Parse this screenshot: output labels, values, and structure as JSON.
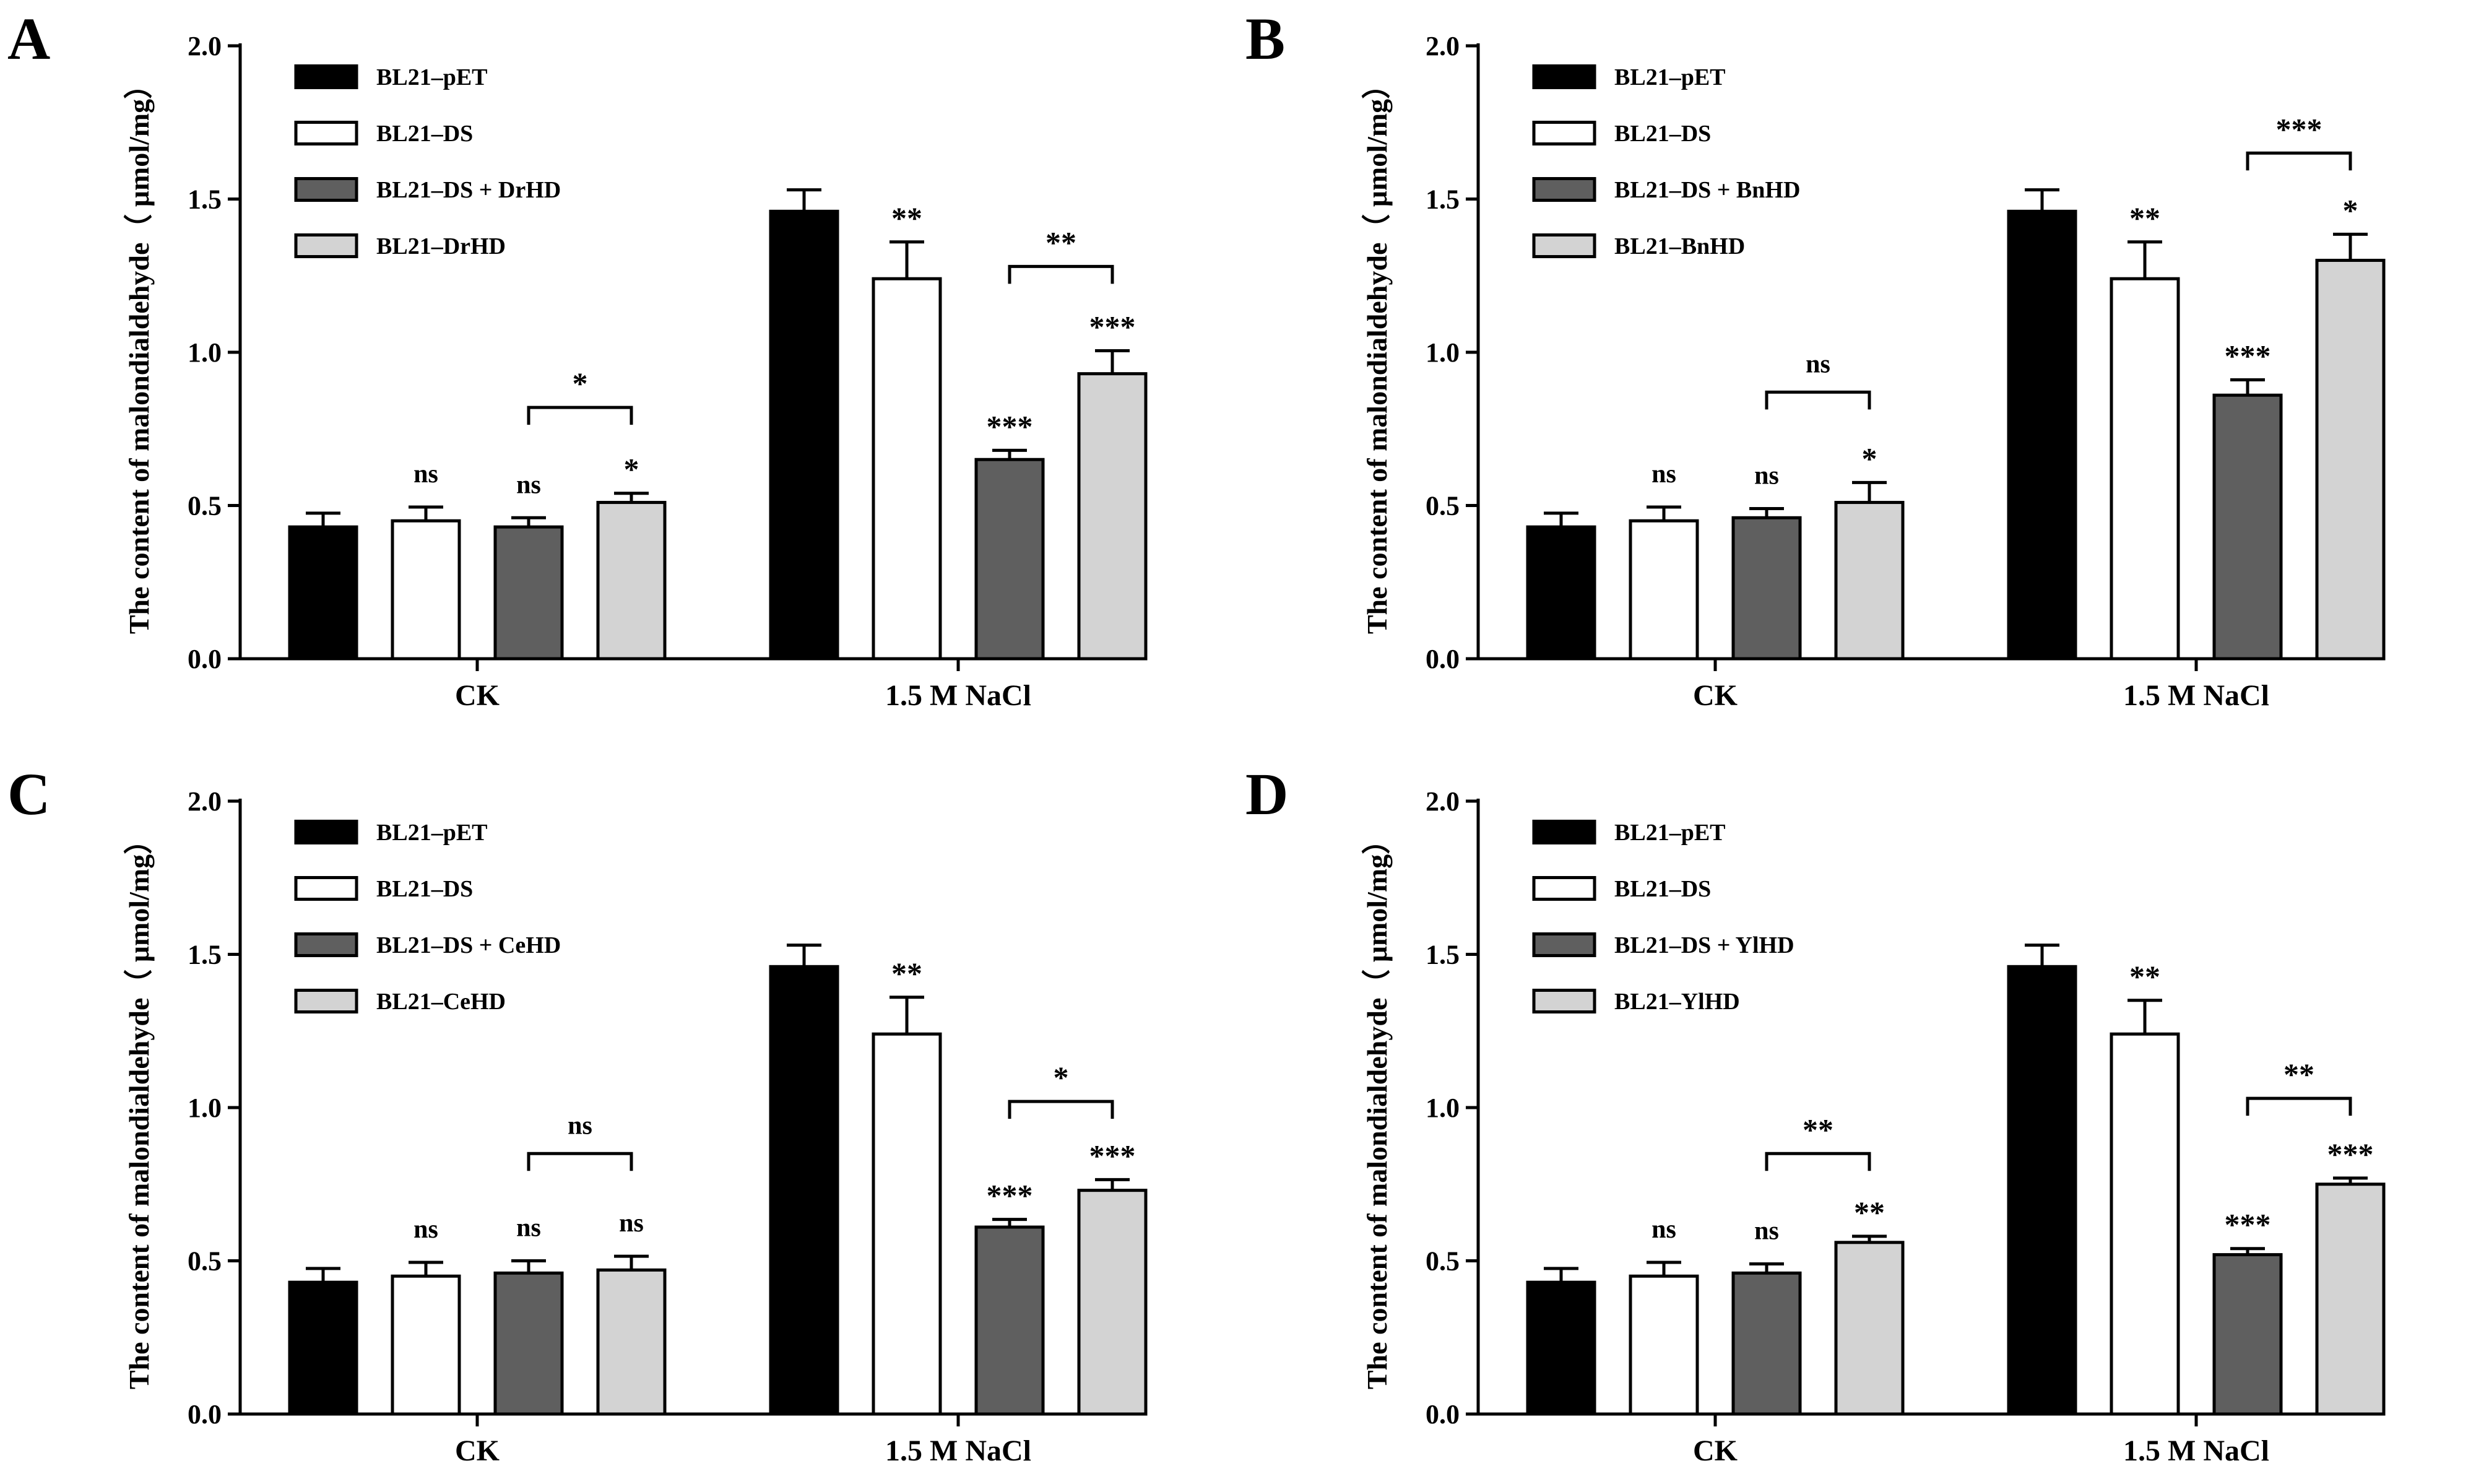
{
  "chart_data": [
    {
      "panel_label": "A",
      "type": "bar",
      "ylabel": "The content of malondialdehyde（ μmol/mg）",
      "ylim": [
        0,
        2.0
      ],
      "yticks": [
        "0.0",
        "0.5",
        "1.0",
        "1.5",
        "2.0"
      ],
      "categories": [
        "CK",
        "1.5 M NaCl"
      ],
      "series": [
        {
          "name": "BL21–pET",
          "color": "#000000",
          "values": [
            0.43,
            1.46
          ],
          "errors": [
            0.045,
            0.07
          ],
          "sig": [
            "",
            ""
          ]
        },
        {
          "name": "BL21–DS",
          "color": "#ffffff",
          "values": [
            0.45,
            1.24
          ],
          "errors": [
            0.045,
            0.12
          ],
          "sig": [
            "ns",
            "**"
          ]
        },
        {
          "name": "BL21–DS + DrHD",
          "color": "#5f5f5f",
          "values": [
            0.43,
            0.65
          ],
          "errors": [
            0.03,
            0.03
          ],
          "sig": [
            "ns",
            "***"
          ]
        },
        {
          "name": "BL21–DrHD",
          "color": "#d3d3d3",
          "values": [
            0.51,
            0.93
          ],
          "errors": [
            0.03,
            0.075
          ],
          "sig": [
            "*",
            "***"
          ]
        }
      ],
      "brackets": [
        {
          "group": 0,
          "from_series": 2,
          "to_series": 3,
          "level": 0.82,
          "label": "*"
        },
        {
          "group": 1,
          "from_series": 2,
          "to_series": 3,
          "level": 1.28,
          "label": "**"
        }
      ]
    },
    {
      "panel_label": "B",
      "type": "bar",
      "ylabel": "The content of malondialdehyde（ μmol/mg）",
      "ylim": [
        0,
        2.0
      ],
      "yticks": [
        "0.0",
        "0.5",
        "1.0",
        "1.5",
        "2.0"
      ],
      "categories": [
        "CK",
        "1.5 M NaCl"
      ],
      "series": [
        {
          "name": "BL21–pET",
          "color": "#000000",
          "values": [
            0.43,
            1.46
          ],
          "errors": [
            0.045,
            0.07
          ],
          "sig": [
            "",
            ""
          ]
        },
        {
          "name": "BL21–DS",
          "color": "#ffffff",
          "values": [
            0.45,
            1.24
          ],
          "errors": [
            0.045,
            0.12
          ],
          "sig": [
            "ns",
            "**"
          ]
        },
        {
          "name": "BL21–DS + BnHD",
          "color": "#5f5f5f",
          "values": [
            0.46,
            0.86
          ],
          "errors": [
            0.03,
            0.05
          ],
          "sig": [
            "ns",
            "***"
          ]
        },
        {
          "name": "BL21–BnHD",
          "color": "#d3d3d3",
          "values": [
            0.51,
            1.3
          ],
          "errors": [
            0.065,
            0.085
          ],
          "sig": [
            "*",
            "*"
          ]
        }
      ],
      "brackets": [
        {
          "group": 0,
          "from_series": 2,
          "to_series": 3,
          "level": 0.87,
          "label": "ns"
        },
        {
          "group": 1,
          "from_series": 2,
          "to_series": 3,
          "level": 1.65,
          "label": "***"
        }
      ]
    },
    {
      "panel_label": "C",
      "type": "bar",
      "ylabel": "The content of malondialdehyde（ μmol/mg）",
      "ylim": [
        0,
        2.0
      ],
      "yticks": [
        "0.0",
        "0.5",
        "1.0",
        "1.5",
        "2.0"
      ],
      "categories": [
        "CK",
        "1.5 M NaCl"
      ],
      "series": [
        {
          "name": "BL21–pET",
          "color": "#000000",
          "values": [
            0.43,
            1.46
          ],
          "errors": [
            0.045,
            0.07
          ],
          "sig": [
            "",
            ""
          ]
        },
        {
          "name": "BL21–DS",
          "color": "#ffffff",
          "values": [
            0.45,
            1.24
          ],
          "errors": [
            0.045,
            0.12
          ],
          "sig": [
            "ns",
            "**"
          ]
        },
        {
          "name": "BL21–DS + CeHD",
          "color": "#5f5f5f",
          "values": [
            0.46,
            0.61
          ],
          "errors": [
            0.04,
            0.025
          ],
          "sig": [
            "ns",
            "***"
          ]
        },
        {
          "name": "BL21–CeHD",
          "color": "#d3d3d3",
          "values": [
            0.47,
            0.73
          ],
          "errors": [
            0.045,
            0.035
          ],
          "sig": [
            "ns",
            "***"
          ]
        }
      ],
      "brackets": [
        {
          "group": 0,
          "from_series": 2,
          "to_series": 3,
          "level": 0.85,
          "label": "ns"
        },
        {
          "group": 1,
          "from_series": 2,
          "to_series": 3,
          "level": 1.02,
          "label": "*"
        }
      ]
    },
    {
      "panel_label": "D",
      "type": "bar",
      "ylabel": "The content of malondialdehyde（ μmol/mg）",
      "ylim": [
        0,
        2.0
      ],
      "yticks": [
        "0.0",
        "0.5",
        "1.0",
        "1.5",
        "2.0"
      ],
      "categories": [
        "CK",
        "1.5 M NaCl"
      ],
      "series": [
        {
          "name": "BL21–pET",
          "color": "#000000",
          "values": [
            0.43,
            1.46
          ],
          "errors": [
            0.045,
            0.07
          ],
          "sig": [
            "",
            ""
          ]
        },
        {
          "name": "BL21–DS",
          "color": "#ffffff",
          "values": [
            0.45,
            1.24
          ],
          "errors": [
            0.045,
            0.11
          ],
          "sig": [
            "ns",
            "**"
          ]
        },
        {
          "name": "BL21–DS + YlHD",
          "color": "#5f5f5f",
          "values": [
            0.46,
            0.52
          ],
          "errors": [
            0.03,
            0.02
          ],
          "sig": [
            "ns",
            "***"
          ]
        },
        {
          "name": "BL21–YlHD",
          "color": "#d3d3d3",
          "values": [
            0.56,
            0.75
          ],
          "errors": [
            0.02,
            0.02
          ],
          "sig": [
            "**",
            "***"
          ]
        }
      ],
      "brackets": [
        {
          "group": 0,
          "from_series": 2,
          "to_series": 3,
          "level": 0.85,
          "label": "**"
        },
        {
          "group": 1,
          "from_series": 2,
          "to_series": 3,
          "level": 1.03,
          "label": "**"
        }
      ]
    }
  ]
}
